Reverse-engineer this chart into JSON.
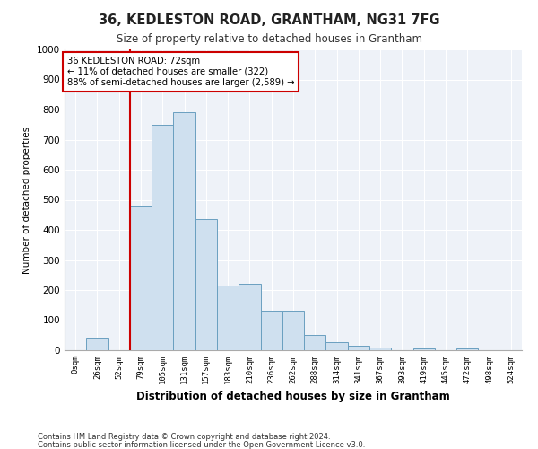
{
  "title": "36, KEDLESTON ROAD, GRANTHAM, NG31 7FG",
  "subtitle": "Size of property relative to detached houses in Grantham",
  "xlabel": "Distribution of detached houses by size in Grantham",
  "ylabel": "Number of detached properties",
  "bar_color": "#cfe0ef",
  "bar_edge_color": "#6a9fc0",
  "background_color": "#eef2f8",
  "categories": [
    "0sqm",
    "26sqm",
    "52sqm",
    "79sqm",
    "105sqm",
    "131sqm",
    "157sqm",
    "183sqm",
    "210sqm",
    "236sqm",
    "262sqm",
    "288sqm",
    "314sqm",
    "341sqm",
    "367sqm",
    "393sqm",
    "419sqm",
    "445sqm",
    "472sqm",
    "498sqm",
    "524sqm"
  ],
  "values": [
    0,
    42,
    0,
    480,
    750,
    790,
    435,
    215,
    220,
    130,
    130,
    50,
    27,
    15,
    10,
    0,
    6,
    0,
    6,
    0,
    0
  ],
  "ylim": [
    0,
    1000
  ],
  "yticks": [
    0,
    100,
    200,
    300,
    400,
    500,
    600,
    700,
    800,
    900,
    1000
  ],
  "annotation_text": "36 KEDLESTON ROAD: 72sqm\n← 11% of detached houses are smaller (322)\n88% of semi-detached houses are larger (2,589) →",
  "annotation_box_color": "#ffffff",
  "annotation_box_edge": "#cc0000",
  "vline_color": "#cc0000",
  "footnote1": "Contains HM Land Registry data © Crown copyright and database right 2024.",
  "footnote2": "Contains public sector information licensed under the Open Government Licence v3.0."
}
